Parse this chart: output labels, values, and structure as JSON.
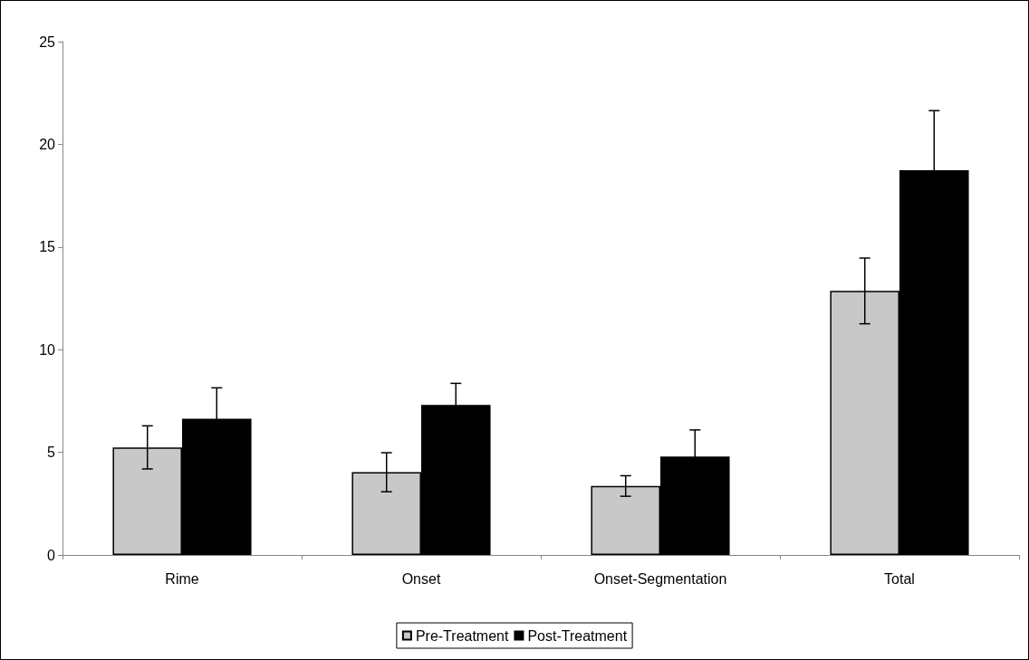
{
  "chart_data": {
    "type": "bar",
    "categories": [
      "Rime",
      "Onset",
      "Onset-Segmentation",
      "Total"
    ],
    "series": [
      {
        "name": "Pre-Treatment",
        "color": "#c8c8c8",
        "values": [
          5.24,
          4.03,
          3.36,
          12.86
        ],
        "errors": [
          1.05,
          0.95,
          0.5,
          1.6
        ]
      },
      {
        "name": "Post-Treatment",
        "color": "#000000",
        "values": [
          6.64,
          7.31,
          4.79,
          18.74
        ],
        "errors": [
          1.5,
          1.05,
          1.3,
          2.9
        ]
      }
    ],
    "ylim": [
      0,
      25
    ],
    "yticks": [
      0,
      5,
      10,
      15,
      20,
      25
    ],
    "grid": false,
    "legend": "bottom"
  }
}
